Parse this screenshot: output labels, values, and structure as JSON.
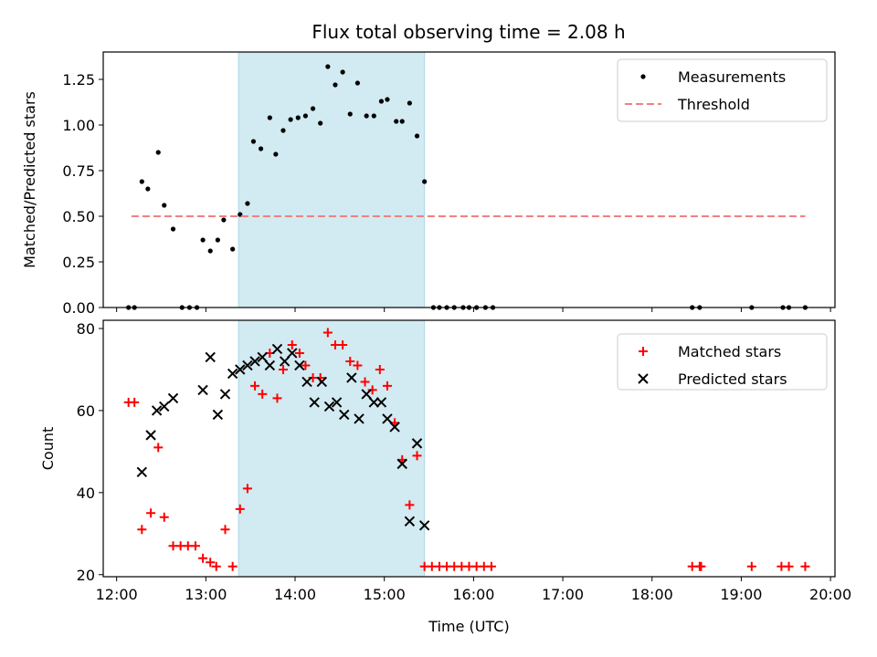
{
  "title": "Flux total observing time = 2.08 h",
  "colors": {
    "measurement": "#000000",
    "threshold": "#f08080",
    "matched": "#ff0000",
    "predicted": "#000000",
    "observing_band": "#add8e6"
  },
  "chart_data": [
    {
      "type": "scatter",
      "ylabel": "Matched/Predicted stars",
      "ylim": [
        0,
        1.4
      ],
      "y_ticks": [
        0,
        0.25,
        0.5,
        0.75,
        1.0,
        1.25
      ],
      "y_tick_labels": [
        "0.00",
        "0.25",
        "0.50",
        "0.75",
        "1.00",
        "1.25"
      ],
      "xlim": [
        "11:51",
        "20:03"
      ],
      "x_ticks": [
        "12:00",
        "13:00",
        "14:00",
        "15:00",
        "16:00",
        "17:00",
        "18:00",
        "19:00",
        "20:00"
      ],
      "observing_band": [
        "13:22",
        "15:27"
      ],
      "legend": {
        "placement": "top-right",
        "entries": [
          "Measurements",
          "Threshold"
        ]
      },
      "series": [
        {
          "name": "Measurements",
          "marker": "dot",
          "points": [
            [
              "12:08",
              0
            ],
            [
              "12:12",
              0
            ],
            [
              "12:17",
              0.69
            ],
            [
              "12:21",
              0.65
            ],
            [
              "12:28",
              0.85
            ],
            [
              "12:32",
              0.56
            ],
            [
              "12:38",
              0.43
            ],
            [
              "12:44",
              0
            ],
            [
              "12:49",
              0
            ],
            [
              "12:54",
              0
            ],
            [
              "12:58",
              0.37
            ],
            [
              "13:03",
              0.31
            ],
            [
              "13:08",
              0.37
            ],
            [
              "13:12",
              0.48
            ],
            [
              "13:18",
              0.32
            ],
            [
              "13:23",
              0.51
            ],
            [
              "13:28",
              0.57
            ],
            [
              "13:32",
              0.91
            ],
            [
              "13:37",
              0.87
            ],
            [
              "13:43",
              1.04
            ],
            [
              "13:47",
              0.84
            ],
            [
              "13:52",
              0.97
            ],
            [
              "13:57",
              1.03
            ],
            [
              "14:02",
              1.04
            ],
            [
              "14:07",
              1.05
            ],
            [
              "14:12",
              1.09
            ],
            [
              "14:17",
              1.01
            ],
            [
              "14:22",
              1.32
            ],
            [
              "14:27",
              1.22
            ],
            [
              "14:32",
              1.29
            ],
            [
              "14:37",
              1.06
            ],
            [
              "14:42",
              1.23
            ],
            [
              "14:48",
              1.05
            ],
            [
              "14:53",
              1.05
            ],
            [
              "14:58",
              1.13
            ],
            [
              "15:02",
              1.14
            ],
            [
              "15:08",
              1.02
            ],
            [
              "15:12",
              1.02
            ],
            [
              "15:17",
              1.12
            ],
            [
              "15:22",
              0.94
            ],
            [
              "15:27",
              0.69
            ],
            [
              "15:33",
              0
            ],
            [
              "15:37",
              0
            ],
            [
              "15:42",
              0
            ],
            [
              "15:47",
              0
            ],
            [
              "15:53",
              0
            ],
            [
              "15:57",
              0
            ],
            [
              "16:02",
              0
            ],
            [
              "16:08",
              0
            ],
            [
              "16:13",
              0
            ],
            [
              "18:27",
              0
            ],
            [
              "18:32",
              0
            ],
            [
              "19:07",
              0
            ],
            [
              "19:28",
              0
            ],
            [
              "19:32",
              0
            ],
            [
              "19:43",
              0
            ]
          ]
        },
        {
          "name": "Threshold",
          "style": "dashed",
          "points": [
            [
              "12:10",
              0.5
            ],
            [
              "19:43",
              0.5
            ]
          ]
        }
      ]
    },
    {
      "type": "scatter",
      "xlabel": "Time (UTC)",
      "ylabel": "Count",
      "ylim": [
        19.5,
        82
      ],
      "y_ticks": [
        20,
        40,
        60,
        80
      ],
      "y_tick_labels": [
        "20",
        "40",
        "60",
        "80"
      ],
      "xlim": [
        "11:51",
        "20:03"
      ],
      "x_ticks": [
        "12:00",
        "13:00",
        "14:00",
        "15:00",
        "16:00",
        "17:00",
        "18:00",
        "19:00",
        "20:00"
      ],
      "x_tick_labels": [
        "12:00",
        "13:00",
        "14:00",
        "15:00",
        "16:00",
        "17:00",
        "18:00",
        "19:00",
        "20:00"
      ],
      "observing_band": [
        "13:22",
        "15:27"
      ],
      "legend": {
        "placement": "top-right",
        "entries": [
          "Matched stars",
          "Predicted stars"
        ]
      },
      "series": [
        {
          "name": "Matched stars",
          "marker": "plus",
          "points": [
            [
              "12:08",
              62
            ],
            [
              "12:12",
              62
            ],
            [
              "12:17",
              31
            ],
            [
              "12:23",
              35
            ],
            [
              "12:28",
              51
            ],
            [
              "12:32",
              34
            ],
            [
              "12:38",
              27
            ],
            [
              "12:43",
              27
            ],
            [
              "12:48",
              27
            ],
            [
              "12:53",
              27
            ],
            [
              "12:58",
              24
            ],
            [
              "13:03",
              23
            ],
            [
              "13:07",
              22
            ],
            [
              "13:13",
              31
            ],
            [
              "13:18",
              22
            ],
            [
              "13:23",
              36
            ],
            [
              "13:28",
              41
            ],
            [
              "13:33",
              66
            ],
            [
              "13:38",
              64
            ],
            [
              "13:43",
              74
            ],
            [
              "13:48",
              63
            ],
            [
              "13:52",
              70
            ],
            [
              "13:58",
              76
            ],
            [
              "14:03",
              74
            ],
            [
              "14:07",
              71
            ],
            [
              "14:12",
              68
            ],
            [
              "14:17",
              68
            ],
            [
              "14:22",
              79
            ],
            [
              "14:27",
              76
            ],
            [
              "14:32",
              76
            ],
            [
              "14:37",
              72
            ],
            [
              "14:42",
              71
            ],
            [
              "14:47",
              67
            ],
            [
              "14:52",
              65
            ],
            [
              "14:57",
              70
            ],
            [
              "15:02",
              66
            ],
            [
              "15:07",
              57
            ],
            [
              "15:12",
              48
            ],
            [
              "15:17",
              37
            ],
            [
              "15:22",
              49
            ],
            [
              "15:27",
              22
            ],
            [
              "15:32",
              22
            ],
            [
              "15:37",
              22
            ],
            [
              "15:42",
              22
            ],
            [
              "15:47",
              22
            ],
            [
              "15:52",
              22
            ],
            [
              "15:57",
              22
            ],
            [
              "16:02",
              22
            ],
            [
              "16:07",
              22
            ],
            [
              "16:12",
              22
            ],
            [
              "18:27",
              22
            ],
            [
              "18:32",
              22
            ],
            [
              "18:33",
              22
            ],
            [
              "19:07",
              22
            ],
            [
              "19:27",
              22
            ],
            [
              "19:32",
              22
            ],
            [
              "19:43",
              22
            ]
          ]
        },
        {
          "name": "Predicted stars",
          "marker": "x",
          "points": [
            [
              "12:17",
              45
            ],
            [
              "12:23",
              54
            ],
            [
              "12:27",
              60
            ],
            [
              "12:32",
              61
            ],
            [
              "12:38",
              63
            ],
            [
              "12:58",
              65
            ],
            [
              "13:03",
              73
            ],
            [
              "13:08",
              59
            ],
            [
              "13:13",
              64
            ],
            [
              "13:18",
              69
            ],
            [
              "13:23",
              70
            ],
            [
              "13:28",
              71
            ],
            [
              "13:33",
              72
            ],
            [
              "13:38",
              73
            ],
            [
              "13:43",
              71
            ],
            [
              "13:48",
              75
            ],
            [
              "13:53",
              72
            ],
            [
              "13:58",
              74
            ],
            [
              "14:03",
              71
            ],
            [
              "14:08",
              67
            ],
            [
              "14:13",
              62
            ],
            [
              "14:18",
              67
            ],
            [
              "14:23",
              61
            ],
            [
              "14:28",
              62
            ],
            [
              "14:33",
              59
            ],
            [
              "14:38",
              68
            ],
            [
              "14:43",
              58
            ],
            [
              "14:48",
              64
            ],
            [
              "14:53",
              62
            ],
            [
              "14:58",
              62
            ],
            [
              "15:02",
              58
            ],
            [
              "15:07",
              56
            ],
            [
              "15:12",
              47
            ],
            [
              "15:17",
              33
            ],
            [
              "15:22",
              52
            ],
            [
              "15:27",
              32
            ]
          ]
        }
      ]
    }
  ]
}
